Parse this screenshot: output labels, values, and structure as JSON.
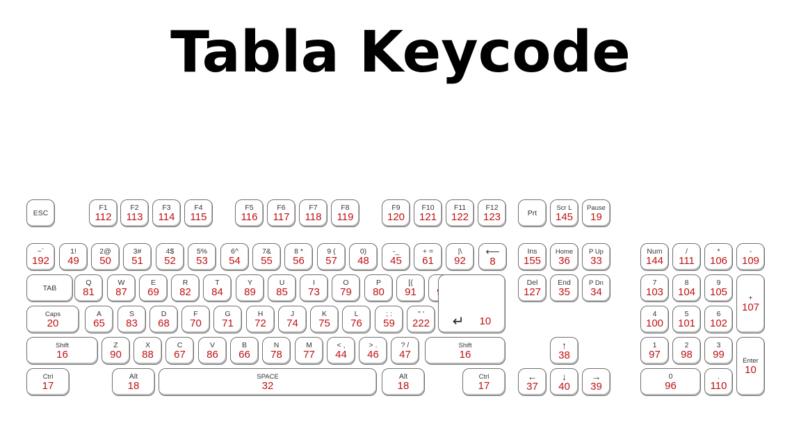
{
  "title": "Tabla Keycode",
  "keys": [
    {
      "name": "esc",
      "label": "ESC",
      "code": ""
    },
    {
      "name": "f1",
      "label": "F1",
      "code": "112"
    },
    {
      "name": "f2",
      "label": "F2",
      "code": "113"
    },
    {
      "name": "f3",
      "label": "F3",
      "code": "114"
    },
    {
      "name": "f4",
      "label": "F4",
      "code": "115"
    },
    {
      "name": "f5",
      "label": "F5",
      "code": "116"
    },
    {
      "name": "f6",
      "label": "F6",
      "code": "117"
    },
    {
      "name": "f7",
      "label": "F7",
      "code": "118"
    },
    {
      "name": "f8",
      "label": "F8",
      "code": "119"
    },
    {
      "name": "f9",
      "label": "F9",
      "code": "120"
    },
    {
      "name": "f10",
      "label": "F10",
      "code": "121"
    },
    {
      "name": "f11",
      "label": "F11",
      "code": "122"
    },
    {
      "name": "f12",
      "label": "F12",
      "code": "123"
    },
    {
      "name": "prt",
      "label": "Prt",
      "code": ""
    },
    {
      "name": "scroll-lock",
      "label": "Scr L",
      "code": "145"
    },
    {
      "name": "pause",
      "label": "Pause",
      "code": "19"
    },
    {
      "name": "backtick",
      "label": "~`",
      "code": "192"
    },
    {
      "name": "digit-1",
      "label": "1!",
      "code": "49"
    },
    {
      "name": "digit-2",
      "label": "2@",
      "code": "50"
    },
    {
      "name": "digit-3",
      "label": "3#",
      "code": "51"
    },
    {
      "name": "digit-4",
      "label": "4$",
      "code": "52"
    },
    {
      "name": "digit-5",
      "label": "5%",
      "code": "53"
    },
    {
      "name": "digit-6",
      "label": "6^",
      "code": "54"
    },
    {
      "name": "digit-7",
      "label": "7&",
      "code": "55"
    },
    {
      "name": "digit-8",
      "label": "8 *",
      "code": "56"
    },
    {
      "name": "digit-9",
      "label": "9 (",
      "code": "57"
    },
    {
      "name": "digit-0",
      "label": "0)",
      "code": "48"
    },
    {
      "name": "minus",
      "label": "-_",
      "code": "45"
    },
    {
      "name": "equals",
      "label": "+ =",
      "code": "61"
    },
    {
      "name": "pipe",
      "label": "|\\",
      "code": "92"
    },
    {
      "name": "backspace",
      "label": "⟵",
      "code": "8"
    },
    {
      "name": "insert",
      "label": "Ins",
      "code": "155"
    },
    {
      "name": "home",
      "label": "Home",
      "code": "36"
    },
    {
      "name": "page-up",
      "label": "P Up",
      "code": "33"
    },
    {
      "name": "num-lock",
      "label": "Num",
      "code": "144"
    },
    {
      "name": "numpad-divide",
      "label": "/",
      "code": "111"
    },
    {
      "name": "numpad-multiply",
      "label": "*",
      "code": "106"
    },
    {
      "name": "numpad-subtract",
      "label": "-",
      "code": "109"
    },
    {
      "name": "tab",
      "label": "TAB",
      "code": ""
    },
    {
      "name": "q",
      "label": "Q",
      "code": "81"
    },
    {
      "name": "w",
      "label": "W",
      "code": "87"
    },
    {
      "name": "e",
      "label": "E",
      "code": "69"
    },
    {
      "name": "r",
      "label": "R",
      "code": "82"
    },
    {
      "name": "t",
      "label": "T",
      "code": "84"
    },
    {
      "name": "y",
      "label": "Y",
      "code": "89"
    },
    {
      "name": "u",
      "label": "U",
      "code": "85"
    },
    {
      "name": "i",
      "label": "I",
      "code": "73"
    },
    {
      "name": "o",
      "label": "O",
      "code": "79"
    },
    {
      "name": "p",
      "label": "P",
      "code": "80"
    },
    {
      "name": "bracket-left",
      "label": "[{",
      "code": "91"
    },
    {
      "name": "bracket-right",
      "label": "]}",
      "code": "93"
    },
    {
      "name": "delete",
      "label": "Del",
      "code": "127"
    },
    {
      "name": "end",
      "label": "End",
      "code": "35"
    },
    {
      "name": "page-down",
      "label": "P Dn",
      "code": "34"
    },
    {
      "name": "numpad-7",
      "label": "7",
      "code": "103"
    },
    {
      "name": "numpad-8",
      "label": "8",
      "code": "104"
    },
    {
      "name": "numpad-9",
      "label": "9",
      "code": "105"
    },
    {
      "name": "numpad-add",
      "label": "+",
      "code": "107"
    },
    {
      "name": "caps-lock",
      "label": "Caps",
      "code": "20"
    },
    {
      "name": "a",
      "label": "A",
      "code": "65"
    },
    {
      "name": "s",
      "label": "S",
      "code": "83"
    },
    {
      "name": "d",
      "label": "D",
      "code": "68"
    },
    {
      "name": "f",
      "label": "F",
      "code": "70"
    },
    {
      "name": "g",
      "label": "G",
      "code": "71"
    },
    {
      "name": "h",
      "label": "H",
      "code": "72"
    },
    {
      "name": "j",
      "label": "J",
      "code": "74"
    },
    {
      "name": "k",
      "label": "K",
      "code": "75"
    },
    {
      "name": "l",
      "label": "L",
      "code": "76"
    },
    {
      "name": "semicolon",
      "label": "; :",
      "code": "59"
    },
    {
      "name": "quote",
      "label": "\" '",
      "code": "222"
    },
    {
      "name": "enter",
      "label": "↵",
      "code": "10"
    },
    {
      "name": "numpad-4",
      "label": "4",
      "code": "100"
    },
    {
      "name": "numpad-5",
      "label": "5",
      "code": "101"
    },
    {
      "name": "numpad-6",
      "label": "6",
      "code": "102"
    },
    {
      "name": "shift-left",
      "label": "Shift",
      "code": "16"
    },
    {
      "name": "z",
      "label": "Z",
      "code": "90"
    },
    {
      "name": "x",
      "label": "X",
      "code": "88"
    },
    {
      "name": "c",
      "label": "C",
      "code": "67"
    },
    {
      "name": "v",
      "label": "V",
      "code": "86"
    },
    {
      "name": "b",
      "label": "B",
      "code": "66"
    },
    {
      "name": "n",
      "label": "N",
      "code": "78"
    },
    {
      "name": "m",
      "label": "M",
      "code": "77"
    },
    {
      "name": "comma",
      "label": "< ,",
      "code": "44"
    },
    {
      "name": "period",
      "label": "> .",
      "code": "46"
    },
    {
      "name": "slash",
      "label": "? /",
      "code": "47"
    },
    {
      "name": "shift-right",
      "label": "Shift",
      "code": "16"
    },
    {
      "name": "arrow-up",
      "label": "↑",
      "code": "38"
    },
    {
      "name": "numpad-1",
      "label": "1",
      "code": "97"
    },
    {
      "name": "numpad-2",
      "label": "2",
      "code": "98"
    },
    {
      "name": "numpad-3",
      "label": "3",
      "code": "99"
    },
    {
      "name": "numpad-enter",
      "label": "Enter",
      "code": "10"
    },
    {
      "name": "ctrl-left",
      "label": "Ctrl",
      "code": "17"
    },
    {
      "name": "alt-left",
      "label": "Alt",
      "code": "18"
    },
    {
      "name": "space",
      "label": "SPACE",
      "code": "32"
    },
    {
      "name": "alt-right",
      "label": "Alt",
      "code": "18"
    },
    {
      "name": "ctrl-right",
      "label": "Ctrl",
      "code": "17"
    },
    {
      "name": "arrow-left",
      "label": "←",
      "code": "37"
    },
    {
      "name": "arrow-down",
      "label": "↓",
      "code": "40"
    },
    {
      "name": "arrow-right",
      "label": "→",
      "code": "39"
    },
    {
      "name": "numpad-0",
      "label": "0",
      "code": "96"
    },
    {
      "name": "numpad-decimal",
      "label": ".",
      "code": "110"
    }
  ]
}
